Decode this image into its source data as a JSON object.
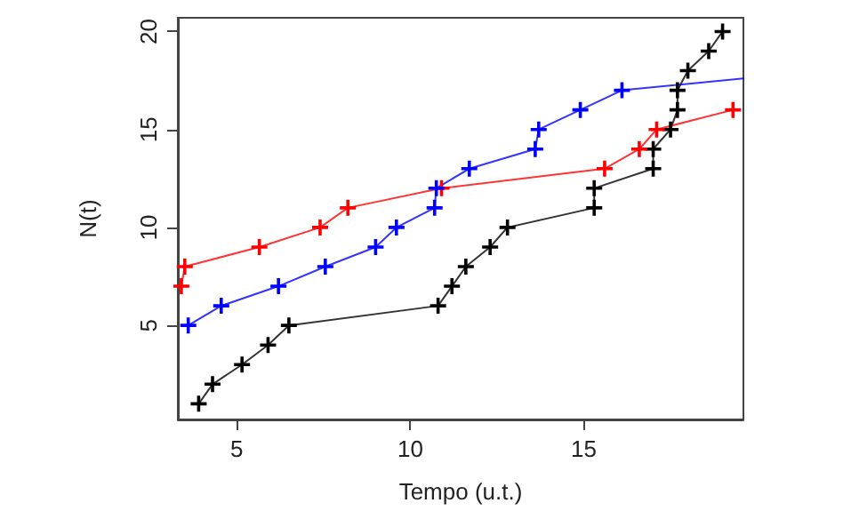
{
  "chart_data": {
    "type": "line",
    "xlabel": "Tempo (u.t.)",
    "ylabel": "N(t)",
    "xlim": [
      3.3,
      19.6
    ],
    "ylim": [
      0.2,
      20.7
    ],
    "xticks": [
      5,
      10,
      15
    ],
    "yticks": [
      5,
      10,
      15,
      20
    ],
    "grid": false,
    "marker": "cross",
    "line_style": "solid",
    "series": [
      {
        "color": "#000000",
        "x": [
          3.9,
          4.3,
          5.15,
          5.9,
          6.5,
          10.8,
          11.2,
          11.6,
          12.3,
          12.8,
          15.3,
          15.3,
          17.0,
          17.0,
          17.5,
          17.7,
          17.7,
          18.0,
          18.6,
          19.0
        ],
        "values": [
          1,
          2,
          3,
          4,
          5,
          6,
          7,
          8,
          9,
          10,
          11,
          12,
          13,
          14,
          15,
          16,
          17,
          18,
          19,
          20
        ]
      },
      {
        "color": "#ff0000",
        "x": [
          3.4,
          3.5,
          5.65,
          7.4,
          8.2,
          10.9,
          15.6,
          16.6,
          17.1,
          19.3
        ],
        "values": [
          7,
          8,
          9,
          10,
          11,
          12,
          13,
          14,
          15,
          16
        ]
      },
      {
        "color": "#0000ff",
        "x": [
          3.6,
          4.55,
          6.2,
          7.55,
          9.0,
          9.6,
          10.7,
          10.75,
          11.7,
          13.6,
          13.7,
          14.9,
          16.1,
          19.6
        ],
        "values": [
          5,
          6,
          7,
          8,
          9,
          10,
          11,
          12,
          13,
          14,
          15,
          16,
          17,
          17.6
        ]
      }
    ]
  }
}
